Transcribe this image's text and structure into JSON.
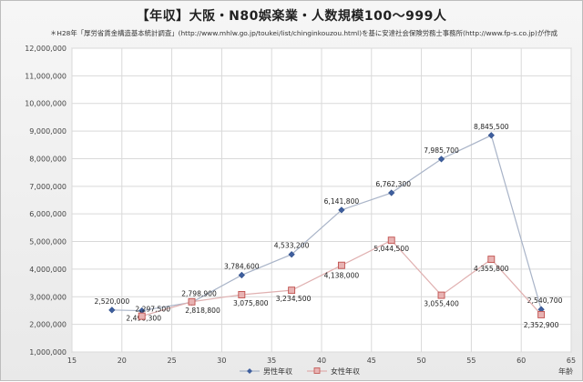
{
  "chart_data": {
    "type": "line",
    "title": "【年収】大阪・N80娯楽業・人数規模100〜999人",
    "subtitle": "＊H28年「厚労省賃金構造基本統計調査」(http://www.mhlw.go.jp/toukei/list/chinginkouzou.html)を基に安達社会保険労務士事務所(http://www.fp-s.co.jp)が作成",
    "xlabel": "年齢",
    "ylabel": "",
    "xlim": [
      15,
      65
    ],
    "ylim": [
      1000000,
      12000000
    ],
    "x_ticks": [
      15,
      20,
      25,
      30,
      35,
      40,
      45,
      50,
      55,
      60,
      65
    ],
    "y_ticks": [
      1000000,
      2000000,
      3000000,
      4000000,
      5000000,
      6000000,
      7000000,
      8000000,
      9000000,
      10000000,
      11000000,
      12000000
    ],
    "y_tick_labels": [
      "1,000,000",
      "2,000,000",
      "3,000,000",
      "4,000,000",
      "5,000,000",
      "6,000,000",
      "7,000,000",
      "8,000,000",
      "9,000,000",
      "10,000,000",
      "11,000,000",
      "12,000,000"
    ],
    "x_tick_labels": [
      "15",
      "20",
      "25",
      "30",
      "35",
      "40",
      "45",
      "50",
      "55",
      "60",
      "65"
    ],
    "grid": true,
    "legend_position": "bottom",
    "series": [
      {
        "name": "男性年収",
        "color": "#5b7fb8",
        "marker": "diamond",
        "x": [
          19,
          22,
          27,
          32,
          37,
          42,
          47,
          52,
          57,
          62
        ],
        "values": [
          2520000,
          2496300,
          2798900,
          3784600,
          4533200,
          6141800,
          6762300,
          7985700,
          8845500,
          2540700
        ],
        "labels": [
          "2,520,000",
          "2,496,300",
          "2,798,900",
          "3,784,600",
          "4,533,200",
          "6,141,800",
          "6,762,300",
          "7,985,700",
          "8,845,500",
          "2,540,700"
        ]
      },
      {
        "name": "女性年収",
        "color": "#d9a0a0",
        "marker": "square",
        "x": [
          22,
          27,
          32,
          37,
          42,
          47,
          52,
          57,
          62
        ],
        "values": [
          2297500,
          2818800,
          3075800,
          3234500,
          4138000,
          5044500,
          3055400,
          4355800,
          2352900
        ],
        "labels": [
          "2,297,500",
          "2,818,800",
          "3,075,800",
          "3,234,500",
          "4,138,000",
          "5,044,500",
          "3,055,400",
          "4,355,800",
          "2,352,900"
        ]
      }
    ]
  }
}
